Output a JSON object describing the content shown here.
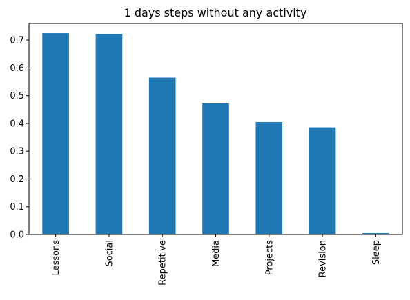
{
  "chart_data": {
    "type": "bar",
    "title": "1 days steps without any activity",
    "xlabel": "",
    "ylabel": "",
    "categories": [
      "Lessons",
      "Social",
      "Repetitive",
      "Media",
      "Projects",
      "Revision",
      "Sleep"
    ],
    "values": [
      0.725,
      0.722,
      0.565,
      0.472,
      0.405,
      0.386,
      0.005
    ],
    "ylim": [
      0,
      0.76
    ],
    "yticks": [
      "0.0",
      "0.1",
      "0.2",
      "0.3",
      "0.4",
      "0.5",
      "0.6",
      "0.7"
    ],
    "bar_color": "#1f77b4",
    "grid": false,
    "legend": "none"
  }
}
